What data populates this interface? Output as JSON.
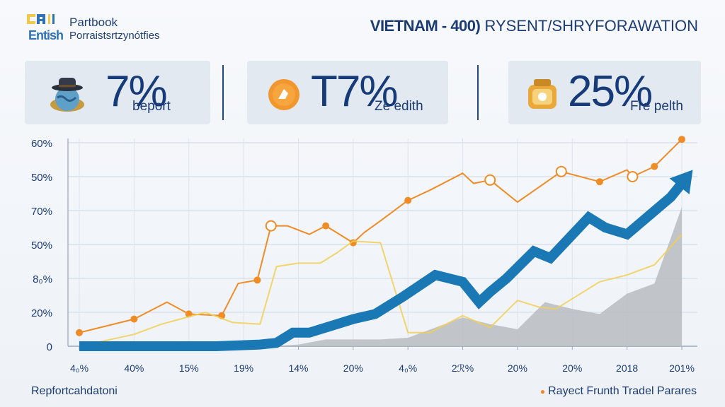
{
  "header": {
    "logo_brand": "Partbook",
    "logo_word": "Entish",
    "logo_sub": "Porraistsrtzynótfies",
    "title_bold": "VIETNAM - 400)",
    "title_rest": "RYSENT/SHRYFORAWATION"
  },
  "kpis": [
    {
      "value": "7%",
      "label": "beport",
      "icon": "hat-globe-icon"
    },
    {
      "value": "T7%",
      "label": "Ze edith",
      "icon": "orange-coin-icon"
    },
    {
      "value": "25%",
      "label": "Fre pelth",
      "icon": "gold-jar-icon"
    }
  ],
  "colors": {
    "orange": "#ef8c26",
    "yellow": "#f1cf53",
    "blue": "#1a78b5",
    "gray": "#b8bcc2",
    "navy": "#163b78"
  },
  "chart_data": {
    "type": "line",
    "x_labels": [
      "4₀%",
      "40%",
      "15%",
      "19%",
      "14%",
      "20%",
      "4₀%",
      "2ℛ%",
      "20%",
      "20%",
      "2018",
      "201%"
    ],
    "y_tick_labels": [
      "0",
      "20%",
      "8₀%",
      "50%",
      "70%",
      "50%",
      "60%"
    ],
    "ylim": [
      0,
      6
    ],
    "grid": true,
    "series": [
      {
        "type": "line",
        "color": "#ef8c26",
        "x": [
          0,
          1,
          1.6,
          2,
          2.6,
          2.9,
          3.25,
          3.5,
          3.8,
          4.2,
          4.5,
          5,
          5.2,
          5.5,
          6,
          6.4,
          7,
          7.2,
          7.5,
          8,
          8.4,
          8.8,
          9.5,
          10,
          10.1,
          10.5,
          11
        ],
        "y": [
          0.4,
          0.8,
          1.3,
          0.95,
          0.9,
          1.85,
          1.95,
          3.55,
          3.55,
          3.3,
          3.55,
          3.05,
          3.35,
          3.7,
          4.3,
          4.6,
          5.1,
          4.8,
          4.9,
          4.25,
          4.7,
          5.15,
          4.85,
          5.2,
          5,
          5.3,
          6.1
        ],
        "hollow_markers": [
          3.5,
          7.5,
          8.8,
          10.1
        ],
        "filled_markers": [
          0,
          1,
          2,
          2.6,
          3.25,
          4.5,
          5,
          6,
          9.5,
          10.5,
          11
        ]
      },
      {
        "type": "line",
        "color": "#f1cf53",
        "x": [
          0,
          1,
          1.5,
          2.3,
          2.8,
          3.3,
          3.6,
          4,
          4.4,
          4.7,
          5,
          5.5,
          6,
          6.4,
          7,
          7.5,
          8,
          8.4,
          8.7,
          9.5,
          10,
          10.5,
          11
        ],
        "y": [
          0,
          0.35,
          0.65,
          1.0,
          0.7,
          0.65,
          2.35,
          2.45,
          2.45,
          2.75,
          3.1,
          3.05,
          0.4,
          0.4,
          0.9,
          0.55,
          1.35,
          1.15,
          1.1,
          1.9,
          2.1,
          2.4,
          3.3
        ]
      },
      {
        "type": "area",
        "color": "#b8bcc2",
        "x": [
          3.5,
          4,
          4.5,
          5,
          5.5,
          6,
          6.5,
          7,
          7.5,
          8,
          8.5,
          9,
          9.5,
          10,
          10.5,
          11
        ],
        "y": [
          0,
          0.05,
          0.2,
          0.2,
          0.2,
          0.25,
          0.55,
          0.85,
          0.65,
          0.5,
          1.3,
          1.1,
          0.95,
          1.55,
          1.85,
          4.1
        ]
      },
      {
        "type": "trend-arrow",
        "color": "#1a78b5",
        "x": [
          0,
          2.5,
          3.3,
          3.6,
          3.9,
          4.2,
          4.6,
          5,
          5.4,
          5.9,
          6.5,
          7,
          7.3,
          7.5,
          7.8,
          8.3,
          8.6,
          9.3,
          9.6,
          10,
          10.8,
          11.2
        ],
        "y": [
          0,
          0,
          0.05,
          0.1,
          0.4,
          0.4,
          0.6,
          0.8,
          0.95,
          1.45,
          2.1,
          1.9,
          1.3,
          1.6,
          2.0,
          2.8,
          2.6,
          3.8,
          3.5,
          3.3,
          4.4,
          5.2
        ]
      }
    ]
  },
  "footer": {
    "left": "Repfortcahdatoni",
    "right": "Rayect Frunth Tradel Parares"
  }
}
